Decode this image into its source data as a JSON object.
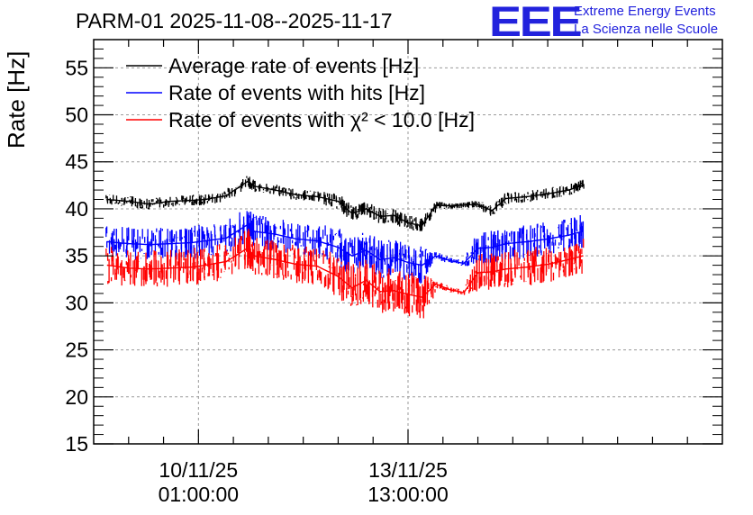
{
  "header": {
    "title": "PARM-01 2025-11-08--2025-11-17",
    "logo_text": "EEE",
    "logo_line1": "Extreme Energy Events",
    "logo_line2": "La Scienza nelle Scuole"
  },
  "chart_data": {
    "type": "line",
    "title": "PARM-01 2025-11-08--2025-11-17",
    "ylabel": "Rate [Hz]",
    "xlabel": "",
    "ylim": [
      15,
      58
    ],
    "xlim": [
      0,
      9
    ],
    "yticks": [
      15,
      20,
      25,
      30,
      35,
      40,
      45,
      50,
      55
    ],
    "grid": true,
    "legend_position": "top-left",
    "xtick_labels": [
      {
        "date": "10/11/25",
        "time": "01:00:00",
        "x": 1.5
      },
      {
        "date": "13/11/25",
        "time": "13:00:00",
        "x": 4.5
      }
    ],
    "series": [
      {
        "name": "Average rate of events [Hz]",
        "color": "#000000",
        "x": [
          0.2,
          0.5,
          0.8,
          1.1,
          1.4,
          1.6,
          1.9,
          2.2,
          2.3,
          2.6,
          2.9,
          3.2,
          3.5,
          3.7,
          3.9,
          4.1,
          4.3,
          4.5,
          4.7,
          4.9,
          5.1,
          5.3,
          5.5,
          5.7,
          5.9,
          6.2,
          6.5,
          6.8,
          7.0
        ],
        "y": [
          41,
          40.8,
          40.5,
          40.8,
          40.9,
          41,
          41.4,
          42.9,
          42.4,
          42,
          41.5,
          41.3,
          40.8,
          39.5,
          40,
          39.2,
          39.3,
          38.5,
          38.2,
          40.4,
          40.3,
          40.4,
          40.5,
          39.8,
          41.1,
          41.3,
          41.6,
          42,
          42.5
        ],
        "band": [
          0.6,
          0.6,
          0.6,
          0.6,
          0.6,
          0.6,
          0.6,
          0.6,
          0.6,
          0.6,
          0.6,
          0.6,
          0.8,
          0.8,
          0.8,
          0.8,
          0.8,
          0.8,
          0.8,
          0.4,
          0.3,
          0.3,
          0.4,
          0.6,
          0.6,
          0.6,
          0.6,
          0.6,
          0.6
        ]
      },
      {
        "name": "Rate of events with hits [Hz]",
        "color": "#0000ff",
        "x": [
          0.2,
          0.5,
          0.8,
          1.1,
          1.4,
          1.6,
          1.9,
          2.2,
          2.3,
          2.6,
          2.9,
          3.2,
          3.5,
          3.7,
          3.9,
          4.1,
          4.3,
          4.5,
          4.7,
          4.9,
          5.1,
          5.3,
          5.5,
          5.7,
          5.9,
          6.2,
          6.5,
          6.8,
          7.0
        ],
        "y": [
          36.5,
          36.3,
          36.2,
          36.3,
          36.4,
          36.6,
          36.9,
          38.3,
          37.6,
          37.3,
          36.8,
          36.6,
          35.9,
          35,
          35.6,
          34.6,
          34.8,
          34.3,
          34,
          35,
          34.5,
          34.2,
          35.8,
          35.9,
          36.3,
          36.5,
          36.8,
          37.2,
          37.6
        ],
        "band": [
          1.8,
          1.8,
          1.8,
          1.8,
          1.8,
          1.8,
          1.8,
          2,
          1.8,
          1.8,
          1.8,
          1.8,
          2,
          2,
          2,
          2,
          2,
          2,
          2,
          0.4,
          0.3,
          0.3,
          1.8,
          1.8,
          1.8,
          1.8,
          1.8,
          1.8,
          1.8
        ]
      },
      {
        "name": "Rate of events with χ² < 10.0 [Hz]",
        "color": "#ff0000",
        "x": [
          0.2,
          0.5,
          0.8,
          1.1,
          1.4,
          1.6,
          1.9,
          2.2,
          2.3,
          2.6,
          2.9,
          3.2,
          3.5,
          3.7,
          3.9,
          4.1,
          4.3,
          4.5,
          4.7,
          4.9,
          5.1,
          5.3,
          5.5,
          5.7,
          5.9,
          6.2,
          6.5,
          6.8,
          7.0
        ],
        "y": [
          34,
          33.7,
          33.6,
          33.7,
          33.8,
          34,
          34.4,
          35.8,
          35,
          34.6,
          34.1,
          33.9,
          32.8,
          31.6,
          32.4,
          31.2,
          31.3,
          30.9,
          30.6,
          32,
          31.4,
          31.1,
          33.2,
          33.3,
          33.6,
          33.8,
          34.1,
          34.6,
          35
        ],
        "band": [
          2,
          2,
          2,
          2,
          2,
          2,
          2,
          2.2,
          2,
          2,
          2,
          2,
          2.4,
          2.4,
          2.4,
          2.4,
          2.4,
          2.4,
          2.4,
          0.4,
          0.3,
          0.3,
          2,
          2,
          2,
          2,
          2,
          2,
          2
        ]
      }
    ]
  }
}
